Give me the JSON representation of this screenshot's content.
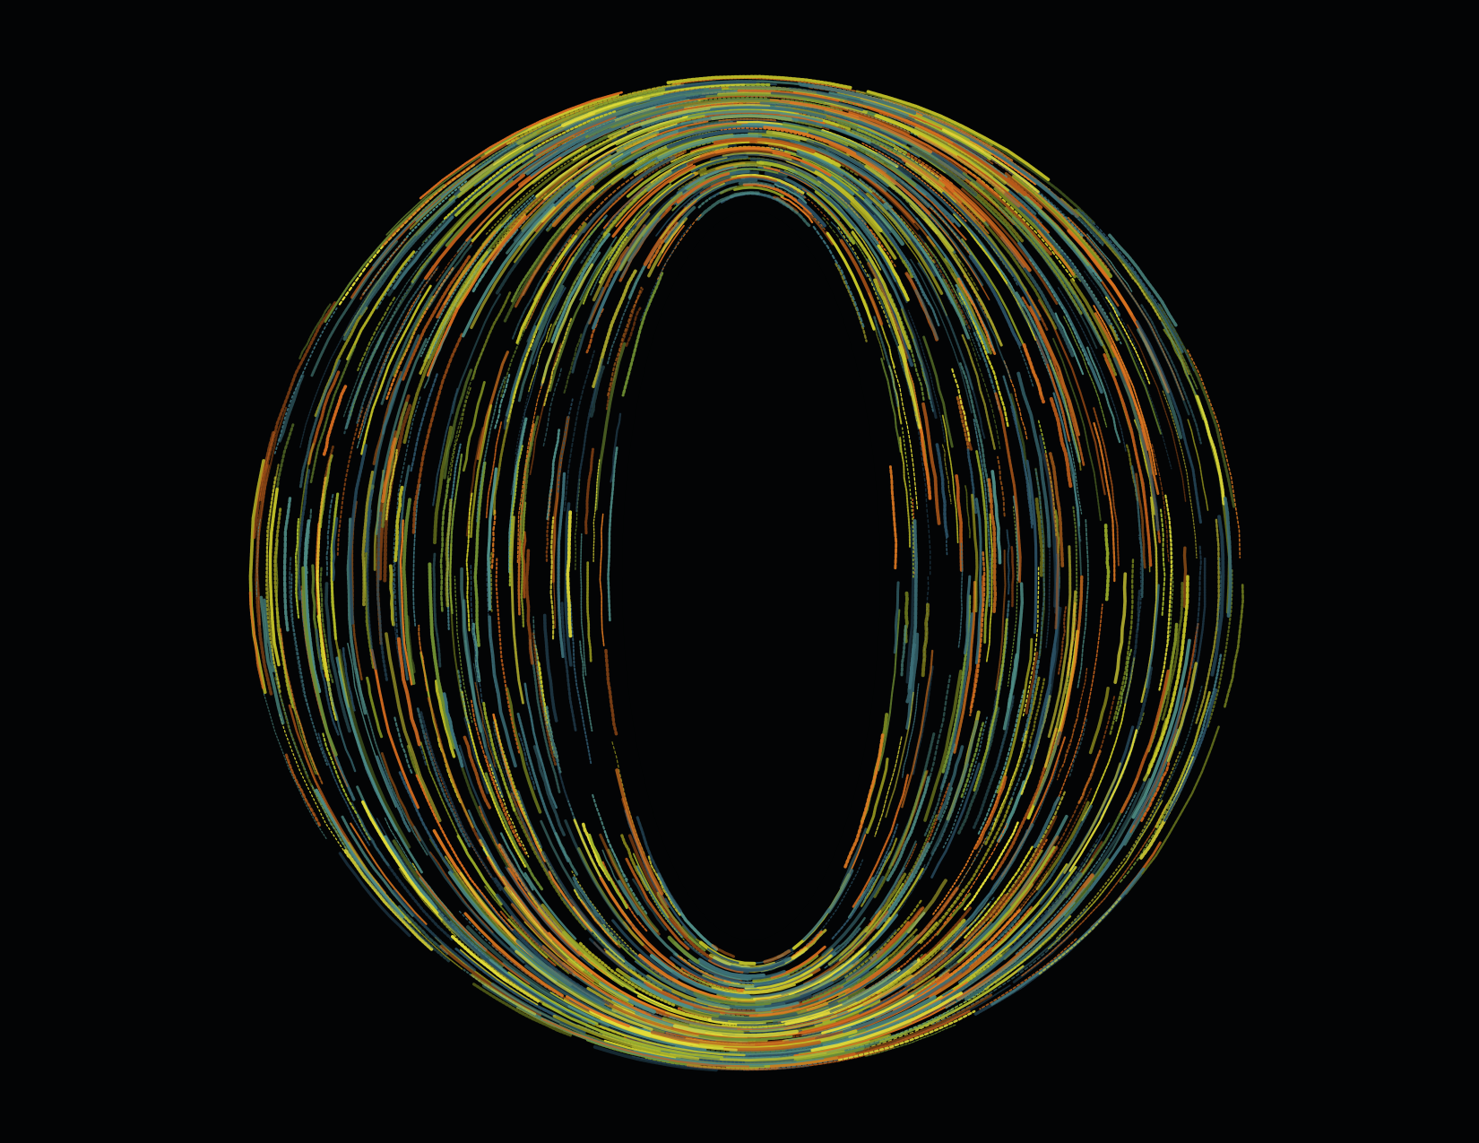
{
  "artwork": {
    "subject": "letter-o-shape",
    "style": "flow-field-streaks",
    "colors": {
      "background": "#030405",
      "palette": [
        "#c7c629",
        "#e2dc3a",
        "#9fb22b",
        "#6f8f32",
        "#4f8d86",
        "#3c6f78",
        "#2a4f63",
        "#d36a1f",
        "#e07a22",
        "#b85a1a"
      ]
    }
  }
}
